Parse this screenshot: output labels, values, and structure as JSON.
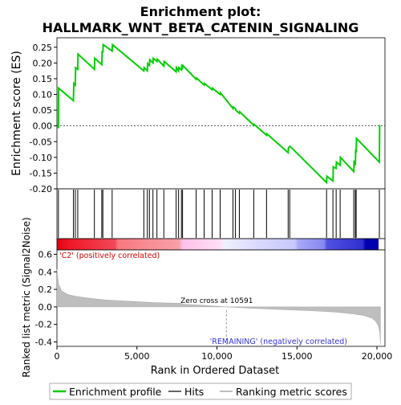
{
  "chart_data": {
    "type": "line",
    "title": "Enrichment plot:\nHALLMARK_WNT_BETA_CATENIN_SIGNALING",
    "top_panel": {
      "ylabel": "Enrichment score (ES)",
      "xlim": [
        0,
        20500
      ],
      "ylim": [
        -0.2,
        0.28
      ],
      "yticks": [
        "0.25",
        "0.20",
        "0.15",
        "0.10",
        "0.05",
        "0.00",
        "-0.05",
        "-0.10",
        "-0.15",
        "-0.20"
      ],
      "ytick_values": [
        0.25,
        0.2,
        0.15,
        0.1,
        0.05,
        0.0,
        -0.05,
        -0.1,
        -0.15,
        -0.2
      ],
      "line_color": "#00d000",
      "series": {
        "x": [
          0,
          90,
          100,
          1030,
          1060,
          1150,
          1170,
          1300,
          1320,
          2340,
          2360,
          2800,
          2820,
          2870,
          2890,
          3450,
          3470,
          5430,
          5450,
          5650,
          5670,
          5780,
          5800,
          6000,
          6020,
          6250,
          6270,
          6680,
          6700,
          7450,
          7470,
          7600,
          7620,
          7780,
          7800,
          7850,
          7870,
          8700,
          8720,
          9200,
          9220,
          9700,
          9720,
          10200,
          10220,
          11000,
          11020,
          11150,
          11170,
          11400,
          11420,
          12300,
          12320,
          13100,
          13120,
          14450,
          14470,
          14550,
          14570,
          16850,
          16870,
          17250,
          17270,
          17450,
          17470,
          17700,
          17720,
          18550,
          18570,
          18650,
          18670,
          18700,
          18720,
          20150,
          20170
        ],
        "y": [
          -0.005,
          -0.005,
          0.12,
          0.08,
          0.135,
          0.13,
          0.185,
          0.18,
          0.228,
          0.18,
          0.215,
          0.195,
          0.235,
          0.235,
          0.258,
          0.238,
          0.258,
          0.175,
          0.185,
          0.175,
          0.198,
          0.192,
          0.21,
          0.2,
          0.215,
          0.205,
          0.212,
          0.19,
          0.205,
          0.172,
          0.185,
          0.175,
          0.185,
          0.178,
          0.19,
          0.185,
          0.192,
          0.148,
          0.152,
          0.13,
          0.135,
          0.115,
          0.12,
          0.1,
          0.105,
          0.055,
          0.06,
          0.055,
          0.05,
          0.04,
          0.045,
          0.002,
          0.005,
          -0.03,
          -0.025,
          -0.085,
          -0.07,
          -0.065,
          -0.065,
          -0.18,
          -0.16,
          -0.175,
          -0.13,
          -0.135,
          -0.115,
          -0.125,
          -0.1,
          -0.145,
          -0.11,
          -0.125,
          -0.075,
          -0.085,
          -0.04,
          -0.115,
          0.003
        ]
      },
      "hits": [
        90,
        1030,
        1150,
        1300,
        2340,
        2800,
        2870,
        3450,
        5430,
        5650,
        5780,
        6000,
        6250,
        6680,
        7450,
        7600,
        7780,
        7850,
        8700,
        9200,
        9700,
        10200,
        11000,
        11150,
        11400,
        12300,
        13100,
        14450,
        14550,
        16850,
        17250,
        17450,
        17700,
        18550,
        18650,
        18700,
        20150
      ]
    },
    "bottom_panel": {
      "ylabel": "Ranked list metric (Signal2Noise)",
      "xlabel": "Rank in Ordered Dataset",
      "xticks": [
        "0",
        "5,000",
        "10,000",
        "15,000",
        "20,000"
      ],
      "xtick_values": [
        0,
        5000,
        10000,
        15000,
        20000
      ],
      "yticks": [
        "0.6",
        "0.4",
        "0.2",
        "0.0",
        "-0.2",
        "-0.4"
      ],
      "ytick_values": [
        0.6,
        0.4,
        0.2,
        0.0,
        -0.2,
        -0.4
      ],
      "ylim": [
        -0.45,
        0.65
      ],
      "fill_color": "#bebebe",
      "metric": {
        "x": [
          0,
          100,
          300,
          700,
          1200,
          2000,
          3000,
          4500,
          6000,
          7800,
          7850,
          9000,
          10591,
          12000,
          14000,
          16000,
          17500,
          18500,
          19200,
          19700,
          19950,
          20100,
          20180,
          20220
        ],
        "y": [
          0.43,
          0.26,
          0.18,
          0.14,
          0.12,
          0.1,
          0.08,
          0.065,
          0.05,
          0.04,
          0.03,
          0.02,
          0.0,
          -0.015,
          -0.03,
          -0.045,
          -0.06,
          -0.08,
          -0.1,
          -0.13,
          -0.17,
          -0.22,
          -0.3,
          -0.43
        ]
      },
      "zero_cross_label": "Zero cross at 10591",
      "zero_cross": 10591,
      "pos_label": "'C2' (positively correlated)",
      "neg_label": "'REMAINING' (negatively correlated)"
    },
    "legend": {
      "items": [
        {
          "label": "Enrichment profile",
          "color": "#00d000"
        },
        {
          "label": "Hits",
          "color": "#000000"
        },
        {
          "label": "Ranking metric scores",
          "color": "#bebebe"
        }
      ]
    }
  }
}
